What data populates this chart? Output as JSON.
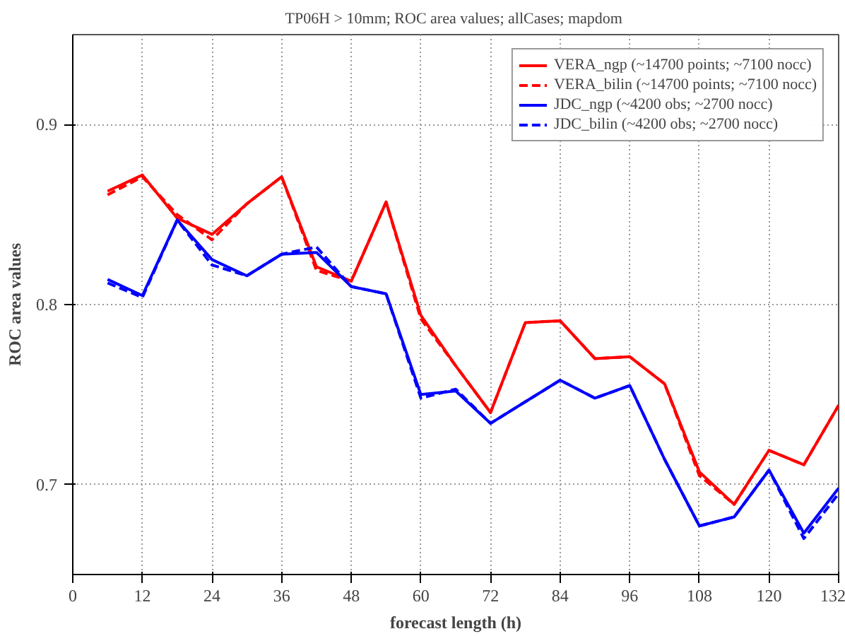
{
  "chart_data": {
    "type": "line",
    "title": "TP06H > 10mm;  ROC area values; allCases; mapdom",
    "xlabel": "forecast length (h)",
    "ylabel": "ROC area values",
    "x": [
      6,
      12,
      18,
      24,
      30,
      36,
      42,
      48,
      54,
      60,
      66,
      72,
      78,
      84,
      90,
      96,
      102,
      108,
      114,
      120,
      126,
      132
    ],
    "xlim": [
      0,
      132
    ],
    "xticks": [
      0,
      12,
      24,
      36,
      48,
      60,
      72,
      84,
      96,
      108,
      120,
      132
    ],
    "ylim": [
      0.65,
      0.95
    ],
    "yticks": [
      0.7,
      0.8,
      0.9
    ],
    "grid": true,
    "legend": "top right",
    "series": [
      {
        "name": "VERA_ngp (~14700 points; ~7100 nocc)",
        "color": "#ff0000",
        "line_style": "solid",
        "values": [
          0.863,
          0.872,
          0.848,
          0.839,
          0.856,
          0.871,
          0.821,
          0.813,
          0.857,
          0.794,
          0.766,
          0.74,
          0.79,
          0.791,
          0.77,
          0.771,
          0.756,
          0.707,
          0.689,
          0.719,
          0.711,
          0.744
        ]
      },
      {
        "name": "VERA_bilin (~14700 points; ~7100 nocc)",
        "color": "#ff0000",
        "line_style": "dashed",
        "values": [
          0.861,
          0.871,
          0.85,
          0.836,
          0.856,
          0.871,
          0.819,
          0.813,
          0.857,
          0.792,
          0.766,
          0.74,
          0.79,
          0.791,
          0.77,
          0.771,
          0.756,
          0.705,
          0.689,
          0.719,
          0.711,
          0.744
        ]
      },
      {
        "name": "JDC_ngp (~4200 obs; ~2700 nocc)",
        "color": "#0000ff",
        "line_style": "solid",
        "values": [
          0.814,
          0.805,
          0.847,
          0.825,
          0.816,
          0.828,
          0.829,
          0.81,
          0.806,
          0.75,
          0.752,
          0.734,
          0.746,
          0.758,
          0.748,
          0.755,
          0.714,
          0.677,
          0.682,
          0.708,
          0.673,
          0.698
        ]
      },
      {
        "name": "JDC_bilin (~4200 obs; ~2700 nocc)",
        "color": "#0000ff",
        "line_style": "dashed",
        "values": [
          0.812,
          0.804,
          0.847,
          0.822,
          0.816,
          0.828,
          0.832,
          0.81,
          0.806,
          0.748,
          0.753,
          0.734,
          0.746,
          0.758,
          0.748,
          0.755,
          0.714,
          0.677,
          0.682,
          0.708,
          0.67,
          0.695
        ]
      }
    ]
  }
}
